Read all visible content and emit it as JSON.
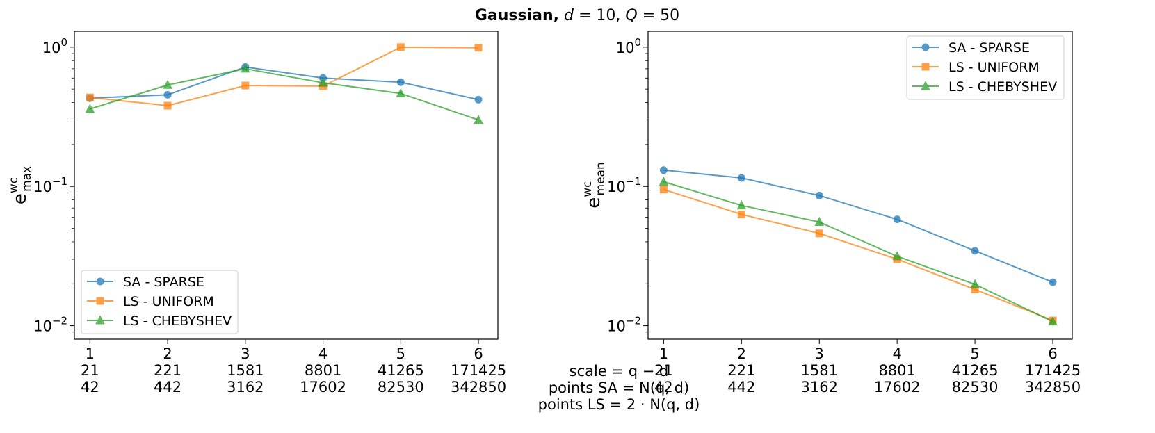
{
  "figure": {
    "title": {
      "bold_part": "Gaussian,",
      "rest_parts": [
        {
          "text": " d",
          "italic": true
        },
        {
          "text": " = 10, ",
          "italic": false
        },
        {
          "text": "Q",
          "italic": true
        },
        {
          "text": " = 50",
          "italic": false
        }
      ]
    },
    "x_row_labels": {
      "row1": "scale = q − d",
      "row2": "points SA = N(q, d)",
      "row3": "points LS = 2 · N(q, d)"
    }
  },
  "chart_data": [
    {
      "type": "line",
      "yscale": "log",
      "ylabel": {
        "base": "e",
        "sup": "wc",
        "sub": "max"
      },
      "ylim": [
        0.008,
        1.3
      ],
      "yticks": [
        {
          "value": 1,
          "base": "10",
          "exp": "0"
        },
        {
          "value": 0.1,
          "base": "10",
          "exp": "−1"
        },
        {
          "value": 0.01,
          "base": "10",
          "exp": "−2"
        }
      ],
      "x": [
        1,
        2,
        3,
        4,
        5,
        6
      ],
      "xlim": [
        0.8,
        6.25
      ],
      "x_tick_labels": [
        "1",
        "2",
        "3",
        "4",
        "5",
        "6"
      ],
      "points_sa": [
        "21",
        "221",
        "1581",
        "8801",
        "41265",
        "171425"
      ],
      "points_ls": [
        "42",
        "442",
        "3162",
        "17602",
        "82530",
        "342850"
      ],
      "legend_position": "lower-left",
      "series": [
        {
          "name": "SA - SPARSE",
          "color": "#1f77b4",
          "marker": "circle",
          "values": [
            0.43,
            0.455,
            0.72,
            0.6,
            0.56,
            0.42
          ]
        },
        {
          "name": "LS - UNIFORM",
          "color": "#ff7f0e",
          "marker": "square",
          "values": [
            0.435,
            0.38,
            0.53,
            0.525,
            1.0,
            0.99
          ]
        },
        {
          "name": "LS - CHEBYSHEV",
          "color": "#2ca02c",
          "marker": "triangle",
          "values": [
            0.36,
            0.535,
            0.7,
            0.555,
            0.465,
            0.3
          ]
        }
      ]
    },
    {
      "type": "line",
      "yscale": "log",
      "ylabel": {
        "base": "e",
        "sup": "wc",
        "sub": "mean"
      },
      "ylim": [
        0.008,
        1.3
      ],
      "yticks": [
        {
          "value": 1,
          "base": "10",
          "exp": "0"
        },
        {
          "value": 0.1,
          "base": "10",
          "exp": "−1"
        },
        {
          "value": 0.01,
          "base": "10",
          "exp": "−2"
        }
      ],
      "x": [
        1,
        2,
        3,
        4,
        5,
        6
      ],
      "xlim": [
        0.8,
        6.25
      ],
      "x_tick_labels": [
        "1",
        "2",
        "3",
        "4",
        "5",
        "6"
      ],
      "points_sa": [
        "21",
        "221",
        "1581",
        "8801",
        "41265",
        "171425"
      ],
      "points_ls": [
        "42",
        "442",
        "3162",
        "17602",
        "82530",
        "342850"
      ],
      "legend_position": "top-right",
      "series": [
        {
          "name": "SA - SPARSE",
          "color": "#1f77b4",
          "marker": "circle",
          "values": [
            0.131,
            0.115,
            0.086,
            0.058,
            0.0345,
            0.0205
          ]
        },
        {
          "name": "LS - UNIFORM",
          "color": "#ff7f0e",
          "marker": "square",
          "values": [
            0.095,
            0.063,
            0.046,
            0.03,
            0.0182,
            0.0109
          ]
        },
        {
          "name": "LS - CHEBYSHEV",
          "color": "#2ca02c",
          "marker": "triangle",
          "values": [
            0.108,
            0.073,
            0.0555,
            0.0315,
            0.0198,
            0.0107
          ]
        }
      ]
    }
  ]
}
